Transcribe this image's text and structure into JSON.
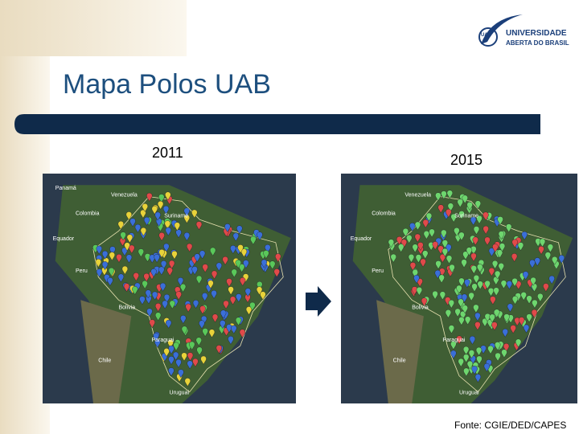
{
  "header": {
    "title": "Mapa Polos UAB",
    "logo": {
      "mark": "UAB",
      "line1": "UNIVERSIDADE",
      "line2": "ABERTA DO BRASIL"
    }
  },
  "maps": [
    {
      "year": "2011",
      "labels": [
        "Panamá",
        "Venezuela",
        "Colombia",
        "Suriname",
        "Equador",
        "Peru",
        "Bolivia",
        "Paraguai",
        "Chile",
        "Uruguai"
      ]
    },
    {
      "year": "2015",
      "labels": [
        "Venezuela",
        "Colombia",
        "Suriname",
        "Equador",
        "Peru",
        "Bolivia",
        "Paraguai",
        "Chile",
        "Uruguai"
      ]
    }
  ],
  "footer": {
    "source": "Fonte: CGIE/DED/CAPES"
  }
}
